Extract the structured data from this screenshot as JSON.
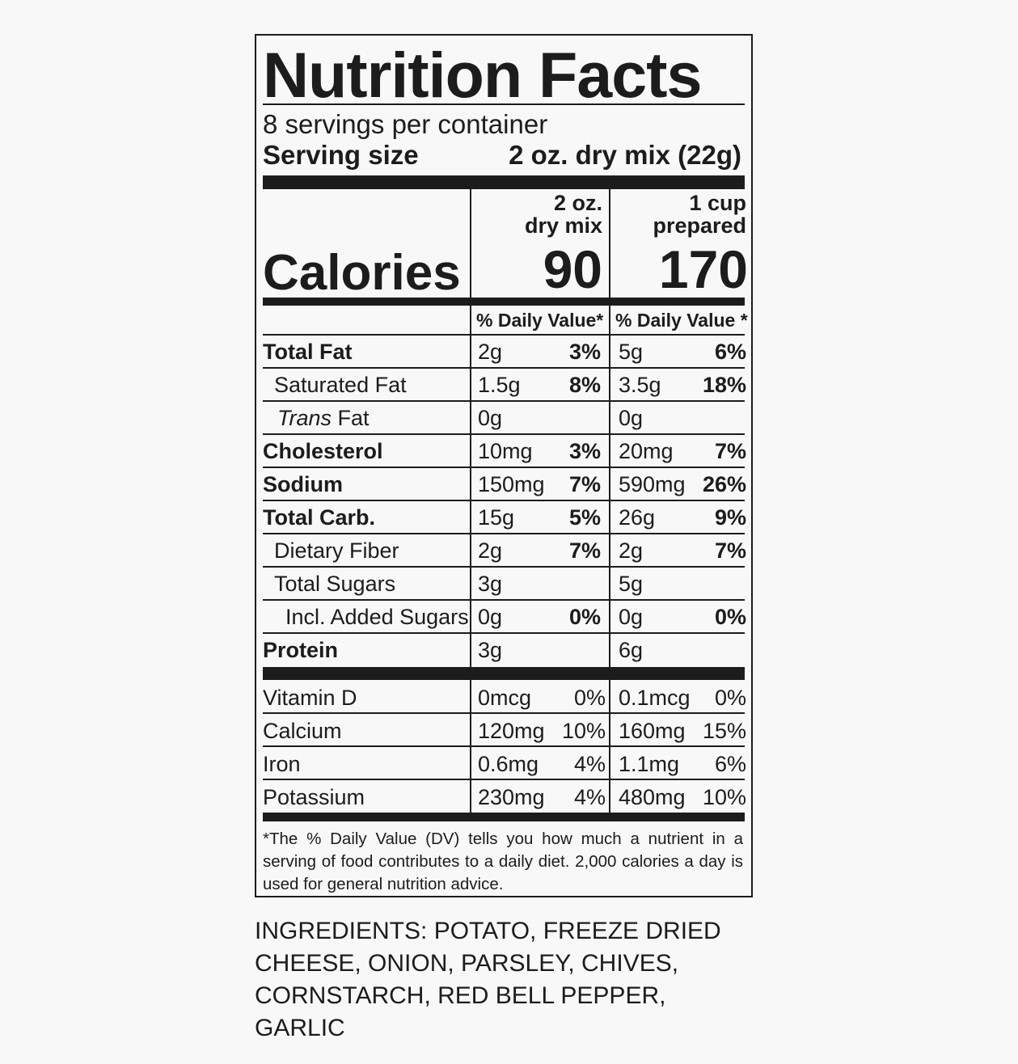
{
  "label": {
    "title": "Nutrition Facts",
    "servings_per_container": "8 servings per container",
    "serving_size_label": "Serving size",
    "serving_size_value": "2 oz. dry mix (22g)",
    "col1_header": [
      "2 oz.",
      "dry mix"
    ],
    "col2_header": [
      "1 cup",
      "prepared"
    ],
    "calories_label": "Calories",
    "calories_col1": "90",
    "calories_col2": "170",
    "dv_header_col1": "% Daily Value*",
    "dv_header_col2": "% Daily Value *",
    "nutrients": [
      {
        "name": "Total Fat",
        "amt1": "2g",
        "dv1": "3%",
        "amt2": "5g",
        "dv2": "6%"
      },
      {
        "name": "Saturated Fat",
        "amt1": "1.5g",
        "dv1": "8%",
        "amt2": "3.5g",
        "dv2": "18%"
      },
      {
        "name_italic": "Trans",
        "name_rest": " Fat",
        "amt1": "0g",
        "dv1": "",
        "amt2": "0g",
        "dv2": ""
      },
      {
        "name": "Cholesterol",
        "amt1": "10mg",
        "dv1": "3%",
        "amt2": "20mg",
        "dv2": "7%"
      },
      {
        "name": "Sodium",
        "amt1": "150mg",
        "dv1": "7%",
        "amt2": "590mg",
        "dv2": "26%"
      },
      {
        "name": "Total Carb.",
        "amt1": "15g",
        "dv1": "5%",
        "amt2": "26g",
        "dv2": "9%"
      },
      {
        "name": "Dietary Fiber",
        "amt1": "2g",
        "dv1": "7%",
        "amt2": "2g",
        "dv2": "7%"
      },
      {
        "name": "Total Sugars",
        "amt1": "3g",
        "dv1": "",
        "amt2": "5g",
        "dv2": ""
      },
      {
        "name": "Incl. Added Sugars",
        "amt1": "0g",
        "dv1": "0%",
        "amt2": "0g",
        "dv2": "0%"
      },
      {
        "name": "Protein",
        "amt1": "3g",
        "dv1": "",
        "amt2": "6g",
        "dv2": ""
      }
    ],
    "vitamins": [
      {
        "name": "Vitamin D",
        "amt1": "0mcg",
        "dv1": "0%",
        "amt2": "0.1mcg",
        "dv2": "0%"
      },
      {
        "name": "Calcium",
        "amt1": "120mg",
        "dv1": "10%",
        "amt2": "160mg",
        "dv2": "15%"
      },
      {
        "name": "Iron",
        "amt1": "0.6mg",
        "dv1": "4%",
        "amt2": "1.1mg",
        "dv2": "6%"
      },
      {
        "name": "Potassium",
        "amt1": "230mg",
        "dv1": "4%",
        "amt2": "480mg",
        "dv2": "10%"
      }
    ],
    "footnote": "*The % Daily Value (DV) tells you how much a nutrient in a serving of food contributes to a daily diet. 2,000 calories a day is used for general nutrition advice."
  },
  "ingredients": "INGREDIENTS: POTATO, FREEZE DRIED CHEESE, ONION, PARSLEY, CHIVES, CORNSTARCH, RED BELL PEPPER, GARLIC"
}
